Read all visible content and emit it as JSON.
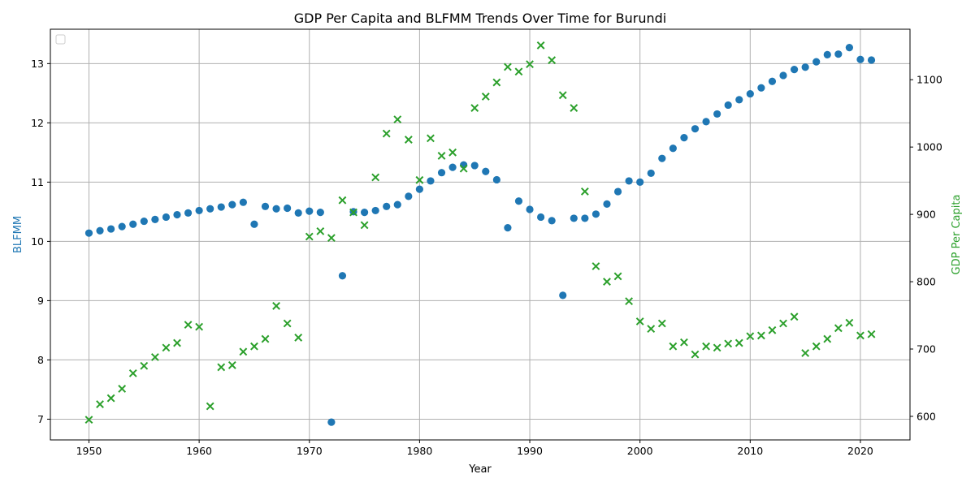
{
  "chart_data": {
    "type": "scatter",
    "title": "GDP Per Capita and BLFMM Trends Over Time for Burundi",
    "xlabel": "Year",
    "ylabel_left": "BLFMM",
    "ylabel_right": "GDP Per Capita",
    "xlim": [
      1946.5,
      2024.5
    ],
    "ylim_left": [
      6.65,
      13.58
    ],
    "ylim_right": [
      565,
      1175
    ],
    "x_ticks": [
      1950,
      1960,
      1970,
      1980,
      1990,
      2000,
      2010,
      2020
    ],
    "y_left_ticks": [
      7,
      8,
      9,
      10,
      11,
      12,
      13
    ],
    "y_right_ticks": [
      600,
      700,
      800,
      900,
      1000,
      1100
    ],
    "grid": true,
    "legend": "top-left (empty)",
    "colors": {
      "left": "#1f77b4",
      "right": "#2ca02c"
    },
    "x": [
      1950,
      1951,
      1952,
      1953,
      1954,
      1955,
      1956,
      1957,
      1958,
      1959,
      1960,
      1961,
      1962,
      1963,
      1964,
      1965,
      1966,
      1967,
      1968,
      1969,
      1970,
      1971,
      1972,
      1973,
      1974,
      1975,
      1976,
      1977,
      1978,
      1979,
      1980,
      1981,
      1982,
      1983,
      1984,
      1985,
      1986,
      1987,
      1988,
      1989,
      1990,
      1991,
      1992,
      1993,
      1994,
      1995,
      1996,
      1997,
      1998,
      1999,
      2000,
      2001,
      2002,
      2003,
      2004,
      2005,
      2006,
      2007,
      2008,
      2009,
      2010,
      2011,
      2012,
      2013,
      2014,
      2015,
      2016,
      2017,
      2018,
      2019,
      2020,
      2021
    ],
    "series": [
      {
        "name": "BLFMM",
        "axis": "left",
        "marker": "circle",
        "values": [
          10.14,
          10.18,
          10.21,
          10.25,
          10.29,
          10.34,
          10.37,
          10.41,
          10.45,
          10.48,
          10.52,
          10.55,
          10.58,
          10.62,
          10.66,
          10.29,
          10.59,
          10.55,
          10.56,
          10.48,
          10.51,
          10.49,
          6.95,
          9.42,
          10.5,
          10.49,
          10.52,
          10.59,
          10.62,
          10.76,
          10.88,
          11.02,
          11.16,
          11.25,
          11.29,
          11.28,
          11.18,
          11.04,
          10.23,
          10.68,
          10.54,
          10.41,
          10.35,
          9.09,
          10.39,
          10.39,
          10.46,
          10.63,
          10.84,
          11.02,
          11.0,
          11.15,
          11.4,
          11.57,
          11.75,
          11.9,
          12.02,
          12.15,
          12.3,
          12.39,
          12.49,
          12.59,
          12.7,
          12.8,
          12.9,
          12.94,
          13.03,
          13.15,
          13.16,
          13.27,
          13.07,
          13.06
        ]
      },
      {
        "name": "GDP Per Capita",
        "axis": "right",
        "marker": "x",
        "values": [
          595,
          618,
          627,
          641,
          664,
          675,
          688,
          702,
          709,
          736,
          733,
          615,
          673,
          676,
          696,
          704,
          715,
          764,
          738,
          717,
          867,
          875,
          865,
          921,
          903,
          884,
          955,
          1020,
          1041,
          1011,
          951,
          1013,
          987,
          992,
          968,
          1058,
          1075,
          1096,
          1119,
          1112,
          1123,
          1151,
          1129,
          1077,
          1058,
          934,
          823,
          800,
          808,
          771,
          741,
          730,
          738,
          704,
          710,
          692,
          704,
          702,
          708,
          709,
          719,
          720,
          728,
          738,
          748,
          694,
          704,
          715,
          731,
          739,
          720,
          722
        ]
      }
    ]
  }
}
